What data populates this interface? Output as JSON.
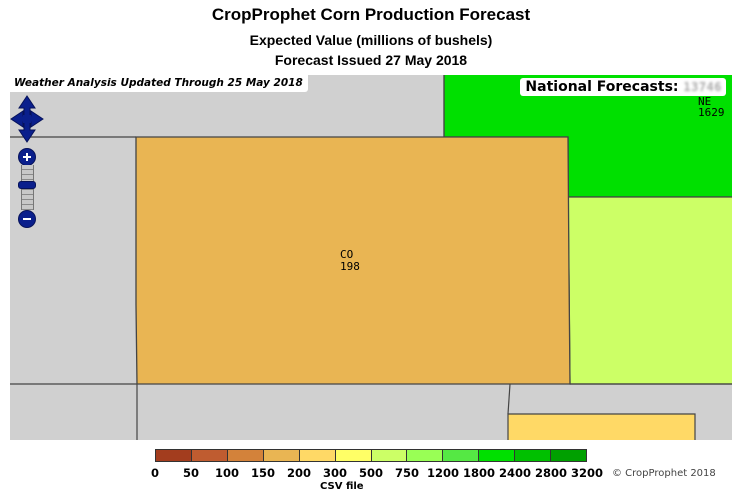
{
  "header": {
    "title": "CropProphet Corn Production Forecast",
    "subtitle": "Expected Value (millions of bushels)",
    "issued": "Forecast Issued 27 May 2018"
  },
  "map": {
    "weather_update": "Weather Analysis Updated Through 25 May 2018",
    "national_label": "National Forecasts:",
    "national_value": "13746",
    "states": [
      {
        "abbr": "CO",
        "value": "198",
        "color": "#e9b553"
      },
      {
        "abbr": "NE",
        "value": "1629",
        "color": "#00e000"
      }
    ],
    "region_colors": {
      "background": "#d0d0d0",
      "colorado": "#e9b553",
      "nebraska": "#00e000",
      "kansas": "#ccff66",
      "oklahoma_panhandle": "#ffd966"
    },
    "icons": {
      "pan": "pan-arrows-icon",
      "zoom_in": "plus-icon",
      "zoom_out": "minus-icon"
    }
  },
  "legend": {
    "colors": [
      "#a33d1e",
      "#bf5c30",
      "#d3823a",
      "#e9b553",
      "#ffd966",
      "#ffff66",
      "#ccff66",
      "#99ff55",
      "#55e844",
      "#00e000",
      "#00c000",
      "#00a000",
      "#008000"
    ],
    "ticks": [
      "0",
      "50",
      "100",
      "150",
      "200",
      "300",
      "500",
      "750",
      "1200",
      "1800",
      "2400",
      "2800",
      "3200"
    ],
    "units": "CSV file",
    "copyright": "© CropProphet 2018"
  }
}
